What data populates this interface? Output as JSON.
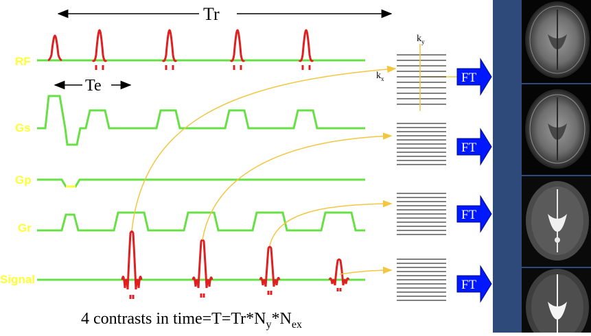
{
  "timing": {
    "tr_label": "Tr",
    "te_label": "Te"
  },
  "channels": {
    "rf": "RF",
    "gs": "Gs",
    "gp": "Gp",
    "gr": "Gr",
    "signal": "Signal"
  },
  "kspace": {
    "ky": "k",
    "ky_sub": "y",
    "kx": "k",
    "kx_sub": "x"
  },
  "ft_label": "FT",
  "caption": {
    "main": "4 contrasts in time=T=Tr*N",
    "sub1": "y",
    "mid": "*N",
    "sub2": "ex"
  },
  "colors": {
    "pulse": "#e02020",
    "line": "#66e044",
    "label": "#ffff33",
    "arrow_curve": "#f2c640",
    "ft_box": "#0018ff",
    "panel": "#2e4a7a"
  },
  "brain_images": [
    "brain-slice-icon",
    "brain-slice-icon",
    "brain-slice-icon",
    "brain-slice-icon"
  ]
}
